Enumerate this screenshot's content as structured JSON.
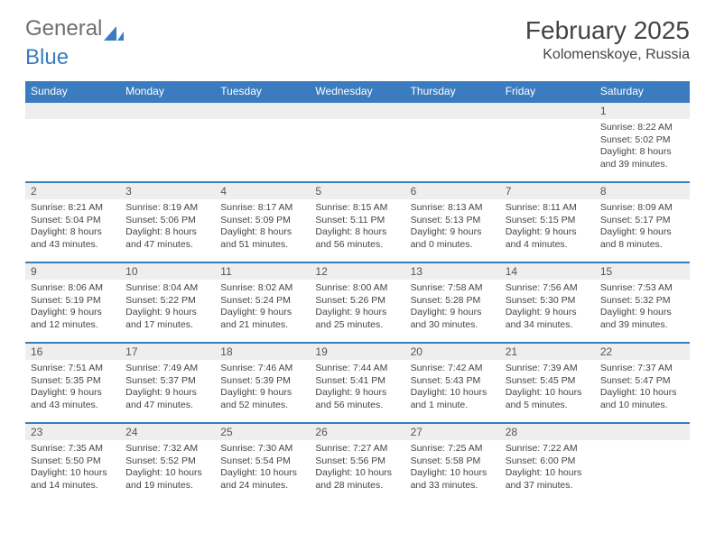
{
  "logo": {
    "text_general": "General",
    "text_blue": "Blue"
  },
  "header": {
    "month": "February 2025",
    "location": "Kolomenskoye, Russia"
  },
  "colors": {
    "header_bar": "#3b7bbf",
    "daynum_bg": "#eeeeee",
    "text": "#444444",
    "page_bg": "#ffffff"
  },
  "weekdays": [
    "Sunday",
    "Monday",
    "Tuesday",
    "Wednesday",
    "Thursday",
    "Friday",
    "Saturday"
  ],
  "weeks": [
    [
      null,
      null,
      null,
      null,
      null,
      null,
      {
        "n": "1",
        "sunrise": "Sunrise: 8:22 AM",
        "sunset": "Sunset: 5:02 PM",
        "daylight": "Daylight: 8 hours and 39 minutes."
      }
    ],
    [
      {
        "n": "2",
        "sunrise": "Sunrise: 8:21 AM",
        "sunset": "Sunset: 5:04 PM",
        "daylight": "Daylight: 8 hours and 43 minutes."
      },
      {
        "n": "3",
        "sunrise": "Sunrise: 8:19 AM",
        "sunset": "Sunset: 5:06 PM",
        "daylight": "Daylight: 8 hours and 47 minutes."
      },
      {
        "n": "4",
        "sunrise": "Sunrise: 8:17 AM",
        "sunset": "Sunset: 5:09 PM",
        "daylight": "Daylight: 8 hours and 51 minutes."
      },
      {
        "n": "5",
        "sunrise": "Sunrise: 8:15 AM",
        "sunset": "Sunset: 5:11 PM",
        "daylight": "Daylight: 8 hours and 56 minutes."
      },
      {
        "n": "6",
        "sunrise": "Sunrise: 8:13 AM",
        "sunset": "Sunset: 5:13 PM",
        "daylight": "Daylight: 9 hours and 0 minutes."
      },
      {
        "n": "7",
        "sunrise": "Sunrise: 8:11 AM",
        "sunset": "Sunset: 5:15 PM",
        "daylight": "Daylight: 9 hours and 4 minutes."
      },
      {
        "n": "8",
        "sunrise": "Sunrise: 8:09 AM",
        "sunset": "Sunset: 5:17 PM",
        "daylight": "Daylight: 9 hours and 8 minutes."
      }
    ],
    [
      {
        "n": "9",
        "sunrise": "Sunrise: 8:06 AM",
        "sunset": "Sunset: 5:19 PM",
        "daylight": "Daylight: 9 hours and 12 minutes."
      },
      {
        "n": "10",
        "sunrise": "Sunrise: 8:04 AM",
        "sunset": "Sunset: 5:22 PM",
        "daylight": "Daylight: 9 hours and 17 minutes."
      },
      {
        "n": "11",
        "sunrise": "Sunrise: 8:02 AM",
        "sunset": "Sunset: 5:24 PM",
        "daylight": "Daylight: 9 hours and 21 minutes."
      },
      {
        "n": "12",
        "sunrise": "Sunrise: 8:00 AM",
        "sunset": "Sunset: 5:26 PM",
        "daylight": "Daylight: 9 hours and 25 minutes."
      },
      {
        "n": "13",
        "sunrise": "Sunrise: 7:58 AM",
        "sunset": "Sunset: 5:28 PM",
        "daylight": "Daylight: 9 hours and 30 minutes."
      },
      {
        "n": "14",
        "sunrise": "Sunrise: 7:56 AM",
        "sunset": "Sunset: 5:30 PM",
        "daylight": "Daylight: 9 hours and 34 minutes."
      },
      {
        "n": "15",
        "sunrise": "Sunrise: 7:53 AM",
        "sunset": "Sunset: 5:32 PM",
        "daylight": "Daylight: 9 hours and 39 minutes."
      }
    ],
    [
      {
        "n": "16",
        "sunrise": "Sunrise: 7:51 AM",
        "sunset": "Sunset: 5:35 PM",
        "daylight": "Daylight: 9 hours and 43 minutes."
      },
      {
        "n": "17",
        "sunrise": "Sunrise: 7:49 AM",
        "sunset": "Sunset: 5:37 PM",
        "daylight": "Daylight: 9 hours and 47 minutes."
      },
      {
        "n": "18",
        "sunrise": "Sunrise: 7:46 AM",
        "sunset": "Sunset: 5:39 PM",
        "daylight": "Daylight: 9 hours and 52 minutes."
      },
      {
        "n": "19",
        "sunrise": "Sunrise: 7:44 AM",
        "sunset": "Sunset: 5:41 PM",
        "daylight": "Daylight: 9 hours and 56 minutes."
      },
      {
        "n": "20",
        "sunrise": "Sunrise: 7:42 AM",
        "sunset": "Sunset: 5:43 PM",
        "daylight": "Daylight: 10 hours and 1 minute."
      },
      {
        "n": "21",
        "sunrise": "Sunrise: 7:39 AM",
        "sunset": "Sunset: 5:45 PM",
        "daylight": "Daylight: 10 hours and 5 minutes."
      },
      {
        "n": "22",
        "sunrise": "Sunrise: 7:37 AM",
        "sunset": "Sunset: 5:47 PM",
        "daylight": "Daylight: 10 hours and 10 minutes."
      }
    ],
    [
      {
        "n": "23",
        "sunrise": "Sunrise: 7:35 AM",
        "sunset": "Sunset: 5:50 PM",
        "daylight": "Daylight: 10 hours and 14 minutes."
      },
      {
        "n": "24",
        "sunrise": "Sunrise: 7:32 AM",
        "sunset": "Sunset: 5:52 PM",
        "daylight": "Daylight: 10 hours and 19 minutes."
      },
      {
        "n": "25",
        "sunrise": "Sunrise: 7:30 AM",
        "sunset": "Sunset: 5:54 PM",
        "daylight": "Daylight: 10 hours and 24 minutes."
      },
      {
        "n": "26",
        "sunrise": "Sunrise: 7:27 AM",
        "sunset": "Sunset: 5:56 PM",
        "daylight": "Daylight: 10 hours and 28 minutes."
      },
      {
        "n": "27",
        "sunrise": "Sunrise: 7:25 AM",
        "sunset": "Sunset: 5:58 PM",
        "daylight": "Daylight: 10 hours and 33 minutes."
      },
      {
        "n": "28",
        "sunrise": "Sunrise: 7:22 AM",
        "sunset": "Sunset: 6:00 PM",
        "daylight": "Daylight: 10 hours and 37 minutes."
      },
      null
    ]
  ]
}
